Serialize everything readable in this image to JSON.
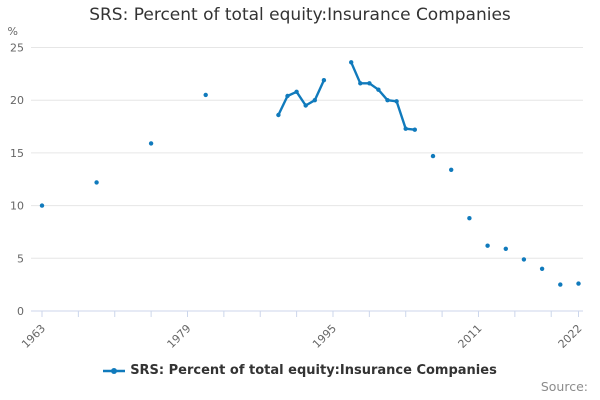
{
  "title": "SRS: Percent of total equity:Insurance Companies",
  "y_axis": {
    "unit_label": "%",
    "ticks": [
      0,
      5,
      10,
      15,
      20,
      25
    ],
    "min": 0,
    "max": 25
  },
  "x_axis": {
    "min_year": 1963,
    "max_year": 2022,
    "tick_step_years": 4,
    "labeled_tick_years": [
      1963,
      1979,
      1995,
      2011,
      2022
    ]
  },
  "legend": {
    "label": "SRS: Percent of total equity:Insurance Companies"
  },
  "source_label": "Source:",
  "colors": {
    "series": "#107abc",
    "gridline": "#e6e6e6",
    "axis_line": "#ccd6eb",
    "tick_label": "#666666",
    "title": "#333333",
    "legend_text": "#333333",
    "source_text": "#8c8c8c",
    "background": "#ffffff"
  },
  "chart_data": {
    "type": "line",
    "title": "SRS: Percent of total equity:Insurance Companies",
    "xlabel": "",
    "ylabel": "%",
    "xlim": [
      1963,
      2022
    ],
    "ylim": [
      0,
      25
    ],
    "grid": "horizontal",
    "legend_position": "bottom-center",
    "connect_rule": "markers always shown; line segments only join points in consecutive years",
    "series": [
      {
        "name": "SRS: Percent of total equity:Insurance Companies",
        "points": [
          {
            "year": 1963,
            "value": 10.0
          },
          {
            "year": 1969,
            "value": 12.2
          },
          {
            "year": 1975,
            "value": 15.9
          },
          {
            "year": 1981,
            "value": 20.5
          },
          {
            "year": 1989,
            "value": 18.6
          },
          {
            "year": 1990,
            "value": 20.4
          },
          {
            "year": 1991,
            "value": 20.8
          },
          {
            "year": 1992,
            "value": 19.5
          },
          {
            "year": 1993,
            "value": 20.0
          },
          {
            "year": 1994,
            "value": 21.9
          },
          {
            "year": 1997,
            "value": 23.6
          },
          {
            "year": 1998,
            "value": 21.6
          },
          {
            "year": 1999,
            "value": 21.6
          },
          {
            "year": 2000,
            "value": 21.0
          },
          {
            "year": 2001,
            "value": 20.0
          },
          {
            "year": 2002,
            "value": 19.9
          },
          {
            "year": 2003,
            "value": 17.3
          },
          {
            "year": 2004,
            "value": 17.2
          },
          {
            "year": 2006,
            "value": 14.7
          },
          {
            "year": 2008,
            "value": 13.4
          },
          {
            "year": 2010,
            "value": 8.8
          },
          {
            "year": 2012,
            "value": 6.2
          },
          {
            "year": 2014,
            "value": 5.9
          },
          {
            "year": 2016,
            "value": 4.9
          },
          {
            "year": 2018,
            "value": 4.0
          },
          {
            "year": 2020,
            "value": 2.5
          },
          {
            "year": 2022,
            "value": 2.6
          }
        ]
      }
    ]
  }
}
